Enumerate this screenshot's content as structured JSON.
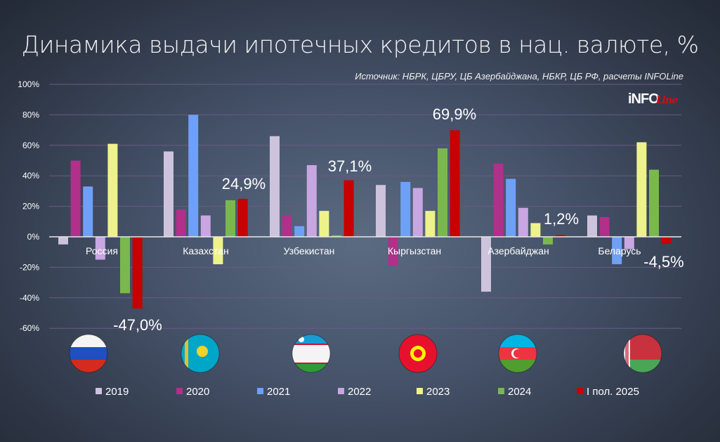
{
  "chart_data": {
    "type": "bar",
    "title": "Динамика выдачи ипотечных кредитов в нац. валюте, %",
    "source": "Источник: НБРК, ЦБРУ, ЦБ Азербайджана, НБКР, ЦБ РФ, расчеты INFOLine",
    "logo": "INFOLine",
    "xlabel": "",
    "ylabel": "",
    "ylim": [
      -60,
      100
    ],
    "yticks": [
      "100%",
      "80%",
      "60%",
      "40%",
      "20%",
      "0%",
      "-20%",
      "-40%",
      "-60%"
    ],
    "ytick_values": [
      100,
      80,
      60,
      40,
      20,
      0,
      -20,
      -40,
      -60
    ],
    "grid": true,
    "legend_position": "bottom",
    "categories": [
      "Россия",
      "Казахстан",
      "Узбекистан",
      "Кыргызстан",
      "Азербайджан",
      "Беларусь"
    ],
    "flags": [
      "russia-flag",
      "kazakhstan-flag",
      "uzbekistan-flag",
      "kyrgyzstan-flag",
      "azerbaijan-flag",
      "belarus-flag"
    ],
    "series": [
      {
        "name": "2019",
        "color": "#cdc3dc",
        "values": [
          -5,
          56,
          66,
          34,
          -36,
          14
        ]
      },
      {
        "name": "2020",
        "color": "#b0308a",
        "values": [
          50,
          18,
          14,
          -19,
          48,
          13
        ]
      },
      {
        "name": "2021",
        "color": "#6fa0f8",
        "values": [
          33,
          80,
          7,
          36,
          38,
          -18
        ]
      },
      {
        "name": "2022",
        "color": "#c8a6e2",
        "values": [
          -15,
          14,
          47,
          32,
          19,
          -8
        ]
      },
      {
        "name": "2023",
        "color": "#eef28a",
        "values": [
          61,
          -18,
          17,
          17,
          9,
          62
        ]
      },
      {
        "name": "2024",
        "color": "#7ab84e",
        "values": [
          -37,
          24,
          1,
          58,
          -5,
          44
        ]
      },
      {
        "name": "I пол. 2025",
        "color": "#c80000",
        "values": [
          -47.0,
          24.9,
          37.1,
          69.9,
          1.2,
          -4.5
        ]
      }
    ],
    "annotations": [
      "-47,0%",
      "24,9%",
      "37,1%",
      "69,9%",
      "1,2%",
      "-4,5%"
    ]
  }
}
